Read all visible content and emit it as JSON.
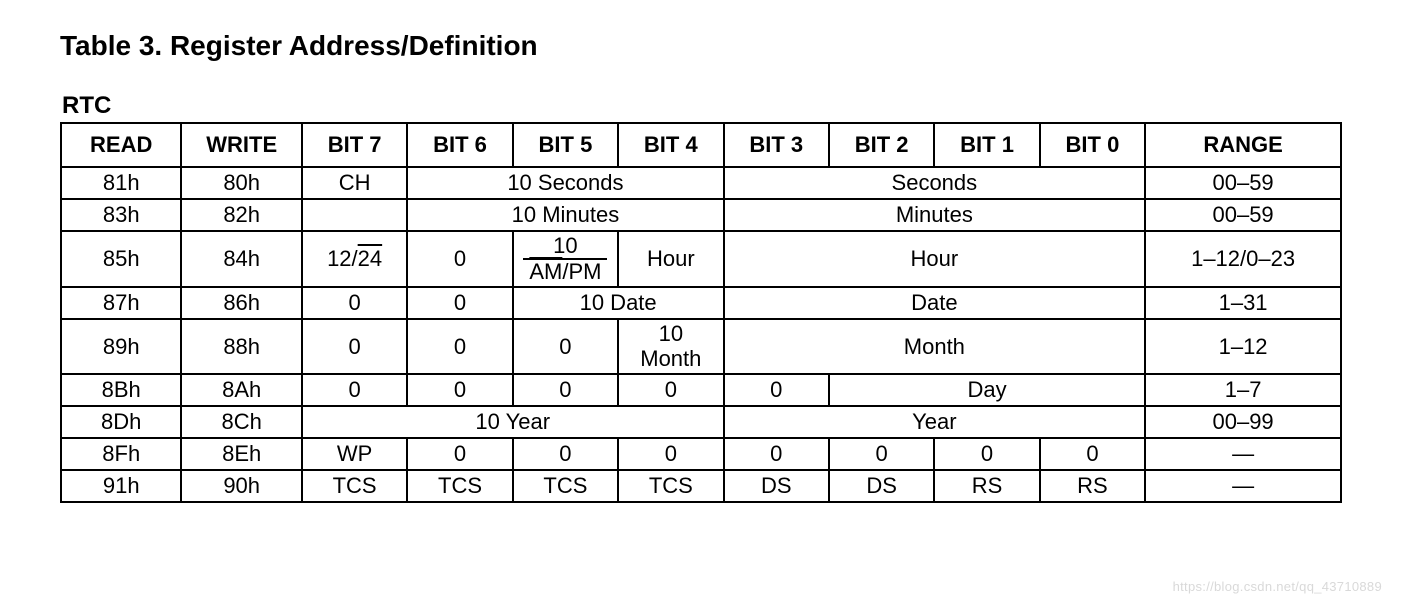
{
  "title": "Table 3. Register Address/Definition",
  "subtitle": "RTC",
  "watermark": "https://blog.csdn.net/qq_43710889",
  "colors": {
    "text": "#000000",
    "background": "#ffffff",
    "border": "#000000",
    "watermark": "#d9d9d9"
  },
  "typography": {
    "title_fontsize": 28,
    "subtitle_fontsize": 24,
    "cell_fontsize": 22,
    "font_family": "Arial"
  },
  "table": {
    "columns": [
      "READ",
      "WRITE",
      "BIT 7",
      "BIT 6",
      "BIT 5",
      "BIT 4",
      "BIT 3",
      "BIT 2",
      "BIT 1",
      "BIT 0",
      "RANGE"
    ],
    "column_widths_pct": [
      8,
      8,
      7,
      7,
      7,
      7,
      7,
      7,
      7,
      7,
      13
    ],
    "rows": [
      {
        "read": "81h",
        "write": "80h",
        "cells": [
          {
            "text": "CH",
            "colspan": 1
          },
          {
            "text": "10 Seconds",
            "colspan": 3
          },
          {
            "text": "Seconds",
            "colspan": 4
          }
        ],
        "range": "00–59"
      },
      {
        "read": "83h",
        "write": "82h",
        "cells": [
          {
            "text": "",
            "colspan": 1
          },
          {
            "text": "10 Minutes",
            "colspan": 3
          },
          {
            "text": "Minutes",
            "colspan": 4
          }
        ],
        "range": "00–59"
      },
      {
        "read": "85h",
        "write": "84h",
        "cells": [
          {
            "html": "12/<span class=\"overline\">24</span>",
            "colspan": 1
          },
          {
            "text": "0",
            "colspan": 1
          },
          {
            "html": "<div class=\"stack\"><span>10</span><span class=\"bottom\"><span class=\"overline\">AM</span>/PM</span></div>",
            "colspan": 1
          },
          {
            "text": "Hour",
            "colspan": 1
          },
          {
            "text": "Hour",
            "colspan": 4
          }
        ],
        "range": "1–12/0–23"
      },
      {
        "read": "87h",
        "write": "86h",
        "cells": [
          {
            "text": "0",
            "colspan": 1
          },
          {
            "text": "0",
            "colspan": 1
          },
          {
            "text": "10 Date",
            "colspan": 2
          },
          {
            "text": "Date",
            "colspan": 4
          }
        ],
        "range": "1–31"
      },
      {
        "read": "89h",
        "write": "88h",
        "cells": [
          {
            "text": "0",
            "colspan": 1
          },
          {
            "text": "0",
            "colspan": 1
          },
          {
            "text": "0",
            "colspan": 1
          },
          {
            "html": "<div class=\"stack\"><span>10</span><span>Month</span></div>",
            "colspan": 1
          },
          {
            "text": "Month",
            "colspan": 4
          }
        ],
        "range": "1–12"
      },
      {
        "read": "8Bh",
        "write": "8Ah",
        "cells": [
          {
            "text": "0",
            "colspan": 1
          },
          {
            "text": "0",
            "colspan": 1
          },
          {
            "text": "0",
            "colspan": 1
          },
          {
            "text": "0",
            "colspan": 1
          },
          {
            "text": "0",
            "colspan": 1
          },
          {
            "text": "Day",
            "colspan": 3
          }
        ],
        "range": "1–7"
      },
      {
        "read": "8Dh",
        "write": "8Ch",
        "cells": [
          {
            "text": "10 Year",
            "colspan": 4
          },
          {
            "text": "Year",
            "colspan": 4
          }
        ],
        "range": "00–99"
      },
      {
        "read": "8Fh",
        "write": "8Eh",
        "cells": [
          {
            "text": "WP",
            "colspan": 1
          },
          {
            "text": "0",
            "colspan": 1
          },
          {
            "text": "0",
            "colspan": 1
          },
          {
            "text": "0",
            "colspan": 1
          },
          {
            "text": "0",
            "colspan": 1
          },
          {
            "text": "0",
            "colspan": 1
          },
          {
            "text": "0",
            "colspan": 1
          },
          {
            "text": "0",
            "colspan": 1
          }
        ],
        "range": "—"
      },
      {
        "read": "91h",
        "write": "90h",
        "cells": [
          {
            "text": "TCS",
            "colspan": 1
          },
          {
            "text": "TCS",
            "colspan": 1
          },
          {
            "text": "TCS",
            "colspan": 1
          },
          {
            "text": "TCS",
            "colspan": 1
          },
          {
            "text": "DS",
            "colspan": 1
          },
          {
            "text": "DS",
            "colspan": 1
          },
          {
            "text": "RS",
            "colspan": 1
          },
          {
            "text": "RS",
            "colspan": 1
          }
        ],
        "range": "—"
      }
    ]
  }
}
